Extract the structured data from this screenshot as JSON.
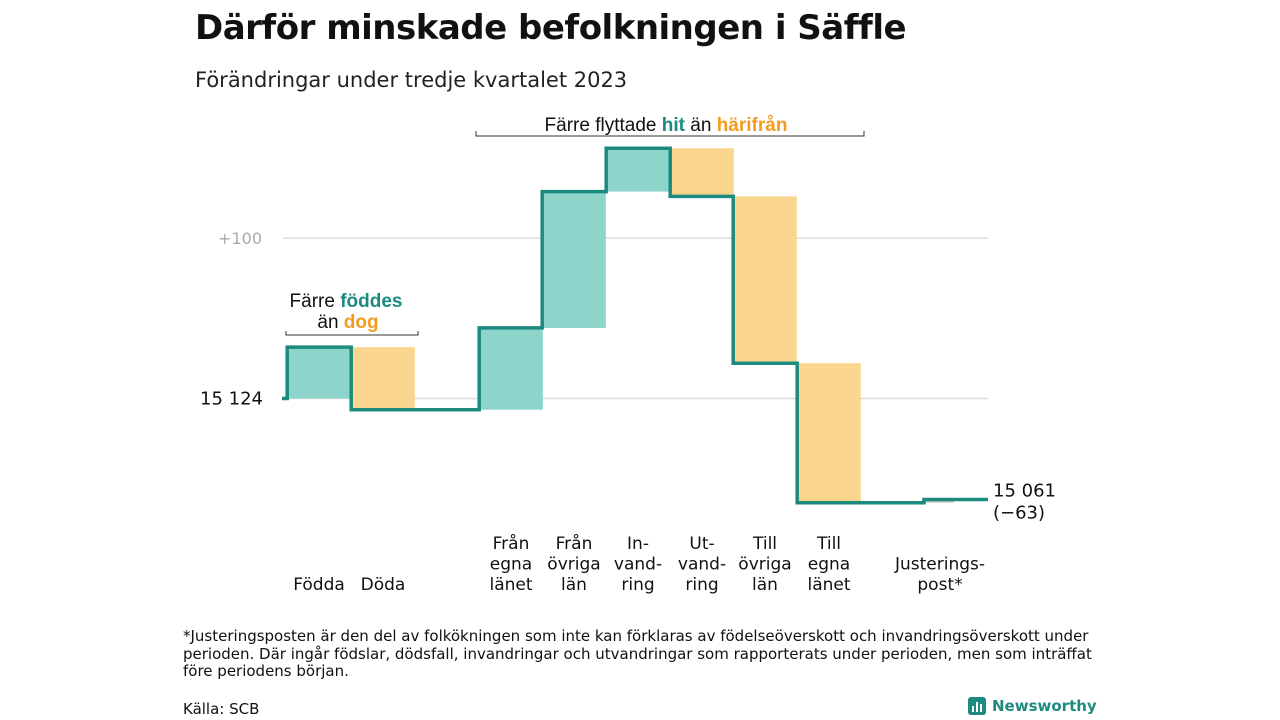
{
  "title": "Därför minskade befolkningen i Säffle",
  "subtitle": "Förändringar under tredje kvartalet 2023",
  "footnote": "*Justeringsposten är den del av folkökningen som inte kan förklaras av födelseöverskott och invandringsöverskott under perioden. Där ingår födslar, dödsfall, invandringar och utvandringar som rapporterats under perioden, men som inträffat före periodens början.",
  "source": "Källa: SCB",
  "brand": "Newsworthy",
  "colors": {
    "increase_fill": "#8dd5cb",
    "decrease_fill": "#fad58e",
    "step_line": "#1d8a80",
    "hit_text": "#1d8a80",
    "harifran_text": "#f29c1f",
    "grid": "#dddddd",
    "adjust_fill": "#c8c8c8"
  },
  "annotations": {
    "birth": {
      "line1_prefix": "Färre ",
      "line1_highlight": "föddes",
      "line2_prefix": "än ",
      "line2_highlight": "dog"
    },
    "migration": {
      "prefix": "Färre flyttade ",
      "highlight1": "hit",
      "middle": " än ",
      "highlight2": "härifrån"
    }
  },
  "chart_data": {
    "type": "waterfall",
    "start_value": 15124,
    "start_label": "15 124",
    "end_value": 15061,
    "end_label": "15 061",
    "end_change_label": "(−63)",
    "gridline_labels": [
      "+100"
    ],
    "steps": [
      {
        "label": [
          "Födda"
        ],
        "value": 32,
        "kind": "increase"
      },
      {
        "label": [
          "Döda"
        ],
        "value": -39,
        "kind": "decrease"
      },
      {
        "label": [
          "Från",
          "egna",
          "länet"
        ],
        "value": 51,
        "kind": "increase"
      },
      {
        "label": [
          "Från",
          "övriga",
          "län"
        ],
        "value": 85,
        "kind": "increase"
      },
      {
        "label": [
          "In-",
          "vand-",
          "ring"
        ],
        "value": 27,
        "kind": "increase"
      },
      {
        "label": [
          "Ut-",
          "vand-",
          "ring"
        ],
        "value": -30,
        "kind": "decrease"
      },
      {
        "label": [
          "Till",
          "övriga",
          "län"
        ],
        "value": -104,
        "kind": "decrease"
      },
      {
        "label": [
          "Till",
          "egna",
          "länet"
        ],
        "value": -87,
        "kind": "decrease"
      },
      {
        "label": [
          "Justerings-",
          "post*"
        ],
        "value": 2,
        "kind": "adjustment"
      }
    ]
  }
}
